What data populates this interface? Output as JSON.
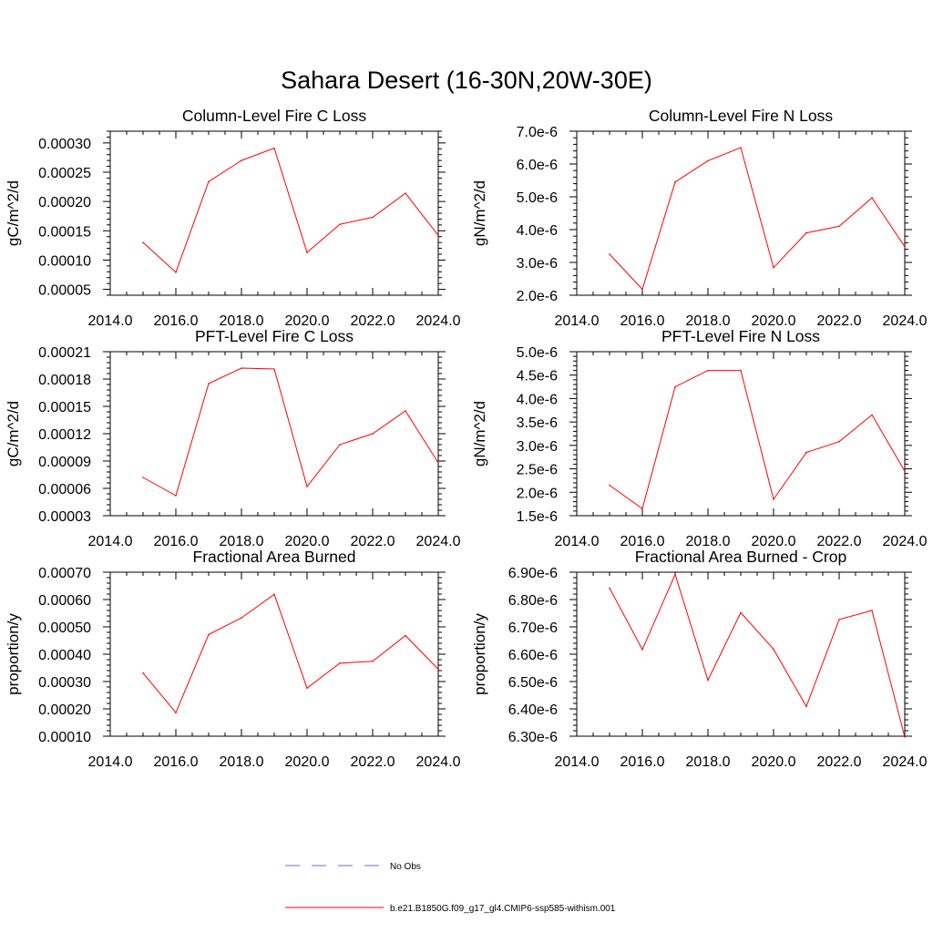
{
  "figure": {
    "title": "Sahara Desert (16-30N,20W-30E)",
    "background": "#ffffff"
  },
  "legend": {
    "entries": [
      {
        "label": "No Obs",
        "color": "#6f6fbf",
        "dashed": true
      },
      {
        "label": "b.e21.B1850G.f09_g17_gl4.CMIP6-ssp585-withism.001",
        "color": "#ff0000",
        "dashed": false
      }
    ]
  },
  "chart_data": [
    {
      "type": "line",
      "title": "Column-Level Fire C Loss",
      "xlabel": "",
      "ylabel": "gC/m^2/d",
      "xlim": [
        2014,
        2024
      ],
      "ylim": [
        4e-05,
        0.00032
      ],
      "xticks": [
        2014,
        2016,
        2018,
        2020,
        2022,
        2024
      ],
      "xtick_labels": [
        "2014.0",
        "2016.0",
        "2018.0",
        "2020.0",
        "2022.0",
        "2024.0"
      ],
      "yticks": [
        5e-05,
        0.0001,
        0.00015,
        0.0002,
        0.00025,
        0.0003
      ],
      "ytick_labels": [
        "0.00005",
        "0.00010",
        "0.00015",
        "0.00020",
        "0.00025",
        "0.00030"
      ],
      "grid": false,
      "series": [
        {
          "color": "#ff0000",
          "x": [
            2015,
            2016,
            2017,
            2018,
            2019,
            2020,
            2021,
            2022,
            2023,
            2024
          ],
          "y": [
            0.00013,
            7.9e-05,
            0.000234,
            0.00027,
            0.000291,
            0.000113,
            0.000161,
            0.000173,
            0.000214,
            0.000142
          ]
        }
      ]
    },
    {
      "type": "line",
      "title": "Column-Level Fire N Loss",
      "xlabel": "",
      "ylabel": "gN/m^2/d",
      "xlim": [
        2014,
        2024
      ],
      "ylim": [
        2e-06,
        7e-06
      ],
      "xticks": [
        2014,
        2016,
        2018,
        2020,
        2022,
        2024
      ],
      "xtick_labels": [
        "2014.0",
        "2016.0",
        "2018.0",
        "2020.0",
        "2022.0",
        "2024.0"
      ],
      "yticks": [
        2e-06,
        3e-06,
        4e-06,
        5e-06,
        6e-06,
        7e-06
      ],
      "ytick_labels": [
        "2.0e-6",
        "3.0e-6",
        "4.0e-6",
        "5.0e-6",
        "6.0e-6",
        "7.0e-6"
      ],
      "grid": false,
      "series": [
        {
          "color": "#ff0000",
          "x": [
            2015,
            2016,
            2017,
            2018,
            2019,
            2020,
            2021,
            2022,
            2023,
            2024
          ],
          "y": [
            3.25e-06,
            2.18e-06,
            5.45e-06,
            6.1e-06,
            6.5e-06,
            2.84e-06,
            3.9e-06,
            4.1e-06,
            4.97e-06,
            3.48e-06
          ]
        }
      ]
    },
    {
      "type": "line",
      "title": "PFT-Level Fire C Loss",
      "xlabel": "",
      "ylabel": "gC/m^2/d",
      "xlim": [
        2014,
        2024
      ],
      "ylim": [
        3e-05,
        0.00021
      ],
      "xticks": [
        2014,
        2016,
        2018,
        2020,
        2022,
        2024
      ],
      "xtick_labels": [
        "2014.0",
        "2016.0",
        "2018.0",
        "2020.0",
        "2022.0",
        "2024.0"
      ],
      "yticks": [
        3e-05,
        6e-05,
        9e-05,
        0.00012,
        0.00015,
        0.00018,
        0.00021
      ],
      "ytick_labels": [
        "0.00003",
        "0.00006",
        "0.00009",
        "0.00012",
        "0.00015",
        "0.00018",
        "0.00021"
      ],
      "grid": false,
      "series": [
        {
          "color": "#ff0000",
          "x": [
            2015,
            2016,
            2017,
            2018,
            2019,
            2020,
            2021,
            2022,
            2023,
            2024
          ],
          "y": [
            7.2e-05,
            5.2e-05,
            0.000175,
            0.000192,
            0.000191,
            6.2e-05,
            0.000108,
            0.00012,
            0.000145,
            8.8e-05
          ]
        }
      ]
    },
    {
      "type": "line",
      "title": "PFT-Level Fire N Loss",
      "xlabel": "",
      "ylabel": "gN/m^2/d",
      "xlim": [
        2014,
        2024
      ],
      "ylim": [
        1.5e-06,
        5e-06
      ],
      "xticks": [
        2014,
        2016,
        2018,
        2020,
        2022,
        2024
      ],
      "xtick_labels": [
        "2014.0",
        "2016.0",
        "2018.0",
        "2020.0",
        "2022.0",
        "2024.0"
      ],
      "yticks": [
        1.5e-06,
        2e-06,
        2.5e-06,
        3e-06,
        3.5e-06,
        4e-06,
        4.5e-06,
        5e-06
      ],
      "ytick_labels": [
        "1.5e-6",
        "2.0e-6",
        "2.5e-6",
        "3.0e-6",
        "3.5e-6",
        "4.0e-6",
        "4.5e-6",
        "5.0e-6"
      ],
      "grid": false,
      "series": [
        {
          "color": "#ff0000",
          "x": [
            2015,
            2016,
            2017,
            2018,
            2019,
            2020,
            2021,
            2022,
            2023,
            2024
          ],
          "y": [
            2.15e-06,
            1.65e-06,
            4.25e-06,
            4.6e-06,
            4.6e-06,
            1.85e-06,
            2.85e-06,
            3.08e-06,
            3.65e-06,
            2.45e-06
          ]
        }
      ]
    },
    {
      "type": "line",
      "title": "Fractional Area Burned",
      "xlabel": "",
      "ylabel": "proportion/y",
      "xlim": [
        2014,
        2024
      ],
      "ylim": [
        0.0001,
        0.0007
      ],
      "xticks": [
        2014,
        2016,
        2018,
        2020,
        2022,
        2024
      ],
      "xtick_labels": [
        "2014.0",
        "2016.0",
        "2018.0",
        "2020.0",
        "2022.0",
        "2024.0"
      ],
      "yticks": [
        0.0001,
        0.0002,
        0.0003,
        0.0004,
        0.0005,
        0.0006,
        0.0007
      ],
      "ytick_labels": [
        "0.00010",
        "0.00020",
        "0.00030",
        "0.00040",
        "0.00050",
        "0.00060",
        "0.00070"
      ],
      "grid": false,
      "series": [
        {
          "color": "#ff0000",
          "x": [
            2015,
            2016,
            2017,
            2018,
            2019,
            2020,
            2021,
            2022,
            2023,
            2024
          ],
          "y": [
            0.000331,
            0.000186,
            0.000472,
            0.000533,
            0.000619,
            0.000276,
            0.000367,
            0.000374,
            0.000468,
            0.000345
          ]
        }
      ]
    },
    {
      "type": "line",
      "title": "Fractional Area Burned - Crop",
      "xlabel": "",
      "ylabel": "proportion/y",
      "xlim": [
        2014,
        2024
      ],
      "ylim": [
        6.3e-06,
        6.9e-06
      ],
      "xticks": [
        2014,
        2016,
        2018,
        2020,
        2022,
        2024
      ],
      "xtick_labels": [
        "2014.0",
        "2016.0",
        "2018.0",
        "2020.0",
        "2022.0",
        "2024.0"
      ],
      "yticks": [
        6.3e-06,
        6.4e-06,
        6.5e-06,
        6.6e-06,
        6.7e-06,
        6.8e-06,
        6.9e-06
      ],
      "ytick_labels": [
        "6.30e-6",
        "6.40e-6",
        "6.50e-6",
        "6.60e-6",
        "6.70e-6",
        "6.80e-6",
        "6.90e-6"
      ],
      "grid": false,
      "series": [
        {
          "color": "#ff0000",
          "x": [
            2015,
            2016,
            2017,
            2018,
            2019,
            2020,
            2021,
            2022,
            2023,
            2024
          ],
          "y": [
            6.842e-06,
            6.617e-06,
            6.892e-06,
            6.505e-06,
            6.752e-06,
            6.618e-06,
            6.409e-06,
            6.727e-06,
            6.76e-06,
            6.297e-06
          ]
        }
      ]
    }
  ]
}
